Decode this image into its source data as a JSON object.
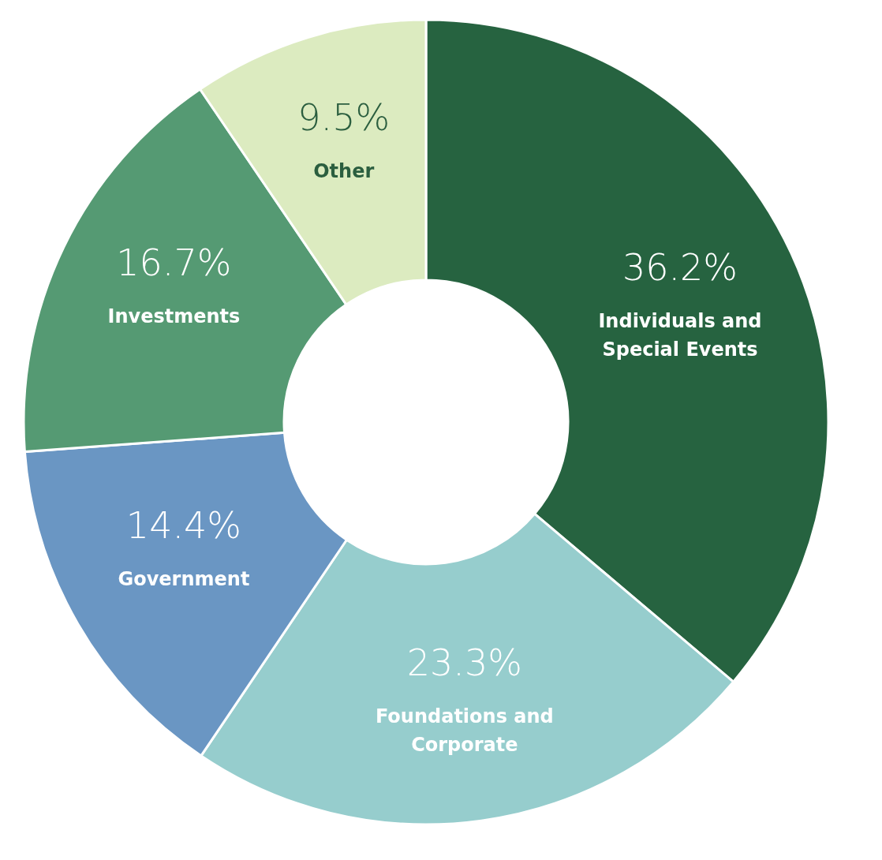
{
  "chart_data": {
    "type": "donut",
    "categories": [
      "Individuals and Special Events",
      "Foundations and Corporate",
      "Government",
      "Investments",
      "Other"
    ],
    "values": [
      36.2,
      23.3,
      14.4,
      16.7,
      9.5
    ],
    "colors": [
      "#266340",
      "#96cdcd",
      "#6a96c3",
      "#559a73",
      "#dcebc0"
    ],
    "value_labels": [
      "36.2%",
      "23.3%",
      "14.4%",
      "16.7%",
      "9.5%"
    ]
  }
}
